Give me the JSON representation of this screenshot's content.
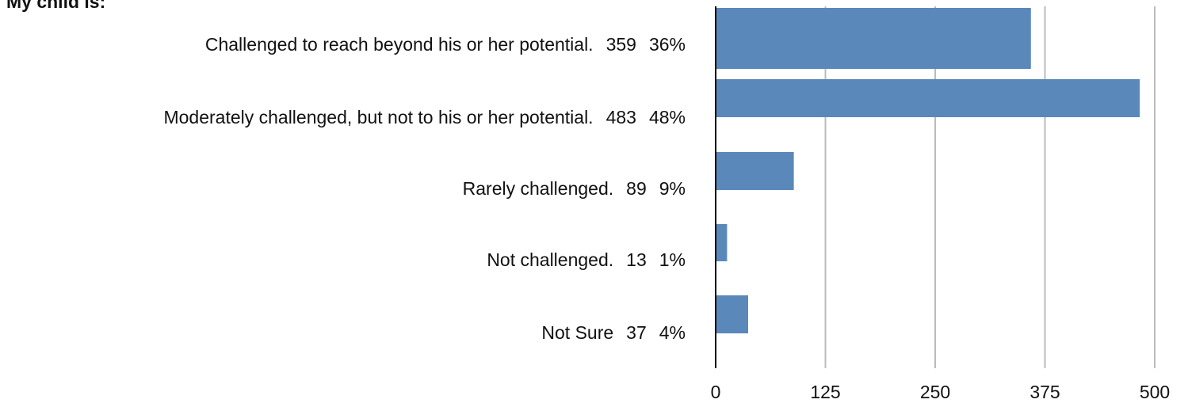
{
  "chart_data": {
    "type": "hbar",
    "title": "My child is:",
    "categories": [
      "Challenged to reach beyond his or her potential.",
      "Moderately challenged, but not to his or her potential.",
      "Rarely challenged.",
      "Not challenged.",
      "Not Sure"
    ],
    "values": [
      359,
      483,
      89,
      13,
      37
    ],
    "percent_labels": [
      "36%",
      "48%",
      "9%",
      "1%",
      "4%"
    ],
    "color": "#5b88ba",
    "xlim": [
      0,
      500
    ],
    "xticks": [
      0,
      125,
      250,
      375,
      500
    ],
    "grid": true
  }
}
